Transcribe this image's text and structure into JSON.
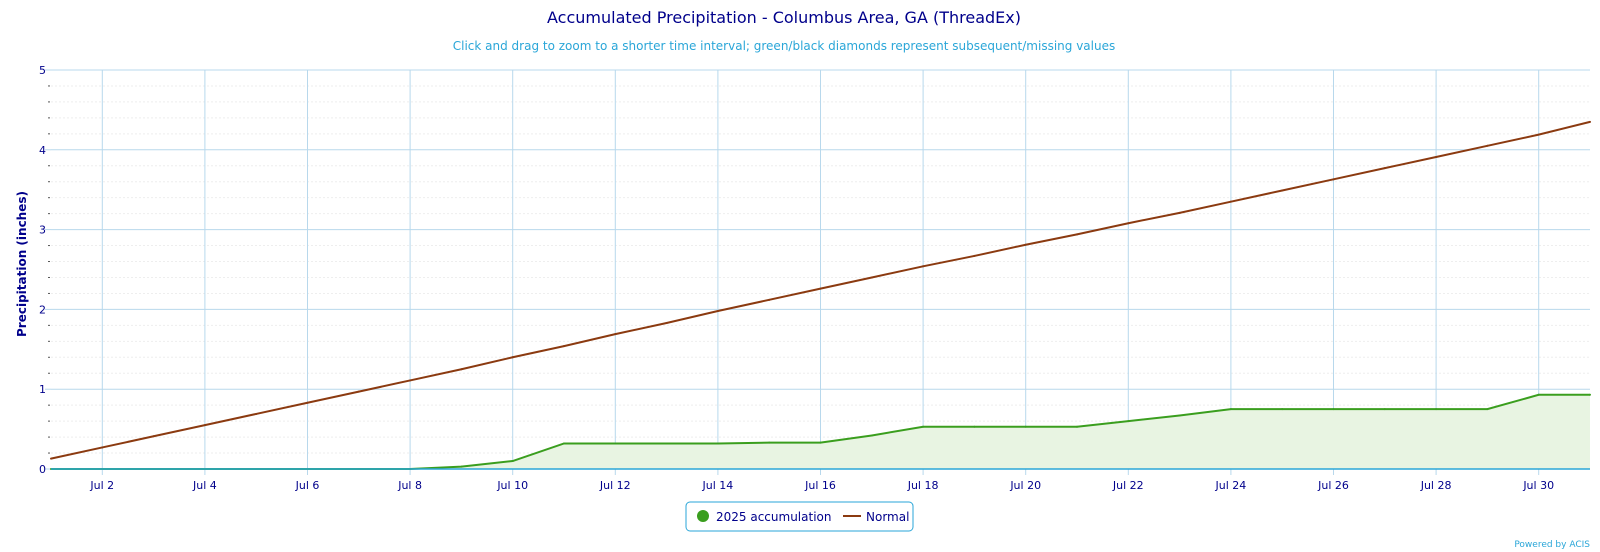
{
  "chart_data": {
    "type": "line",
    "title": "Accumulated Precipitation - Columbus Area, GA (ThreadEx)",
    "subtitle": "Click and drag to zoom to a shorter time interval; green/black diamonds represent subsequent/missing values",
    "ylabel": "Precipitation (inches)",
    "xlabel": "",
    "ylim": [
      0,
      5
    ],
    "yticks": [
      "0",
      "1",
      "2",
      "3",
      "4",
      "5"
    ],
    "xlim": [
      "Jul 1",
      "Jul 31"
    ],
    "xticks": [
      "Jul 2",
      "Jul 4",
      "Jul 6",
      "Jul 8",
      "Jul 10",
      "Jul 12",
      "Jul 14",
      "Jul 16",
      "Jul 18",
      "Jul 20",
      "Jul 22",
      "Jul 24",
      "Jul 26",
      "Jul 28",
      "Jul 30"
    ],
    "grid": true,
    "legend_position": "bottom-center",
    "x": [
      "Jul 1",
      "Jul 2",
      "Jul 3",
      "Jul 4",
      "Jul 5",
      "Jul 6",
      "Jul 7",
      "Jul 8",
      "Jul 9",
      "Jul 10",
      "Jul 11",
      "Jul 12",
      "Jul 13",
      "Jul 14",
      "Jul 15",
      "Jul 16",
      "Jul 17",
      "Jul 18",
      "Jul 19",
      "Jul 20",
      "Jul 21",
      "Jul 22",
      "Jul 23",
      "Jul 24",
      "Jul 25",
      "Jul 26",
      "Jul 27",
      "Jul 28",
      "Jul 29",
      "Jul 30",
      "Jul 31"
    ],
    "series": [
      {
        "name": "2025 accumulation",
        "color": "#3a9e1e",
        "fill": "#e8f4e2",
        "marker": "circle",
        "values": [
          0.0,
          0.0,
          0.0,
          0.0,
          0.0,
          0.0,
          0.0,
          0.0,
          0.03,
          0.1,
          0.32,
          0.32,
          0.32,
          0.32,
          0.33,
          0.33,
          0.42,
          0.53,
          0.53,
          0.53,
          0.53,
          0.6,
          0.67,
          0.75,
          0.75,
          0.75,
          0.75,
          0.75,
          0.75,
          0.93,
          0.93
        ]
      },
      {
        "name": "Normal",
        "color": "#8b3a10",
        "values": [
          0.13,
          0.27,
          0.41,
          0.55,
          0.69,
          0.83,
          0.97,
          1.11,
          1.25,
          1.4,
          1.54,
          1.69,
          1.83,
          1.98,
          2.12,
          2.26,
          2.4,
          2.54,
          2.67,
          2.81,
          2.94,
          3.08,
          3.21,
          3.35,
          3.49,
          3.63,
          3.77,
          3.91,
          4.05,
          4.19,
          4.35
        ]
      }
    ]
  },
  "credit": "Powered by ACIS",
  "colors": {
    "title": "#00008b",
    "subtitle": "#2aa6d8",
    "grid": "#b8d8ec",
    "legend_border": "#2aa6d8"
  }
}
